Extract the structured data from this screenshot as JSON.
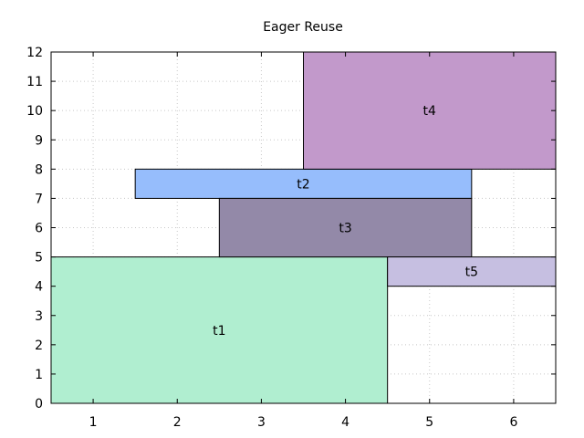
{
  "chart_data": {
    "type": "bar",
    "subtype": "interval-blocks",
    "title": "Eager Reuse",
    "xlabel": "",
    "ylabel": "",
    "xlim": [
      0.5,
      6.5
    ],
    "ylim": [
      0,
      12
    ],
    "x_ticks": [
      1,
      2,
      3,
      4,
      5,
      6
    ],
    "y_ticks": [
      0,
      1,
      2,
      3,
      4,
      5,
      6,
      7,
      8,
      9,
      10,
      11,
      12
    ],
    "grid": true,
    "blocks": [
      {
        "label": "t1",
        "x_start": 0.5,
        "x_end": 4.5,
        "y_start": 0,
        "y_end": 5,
        "color": "#b0eed0"
      },
      {
        "label": "t2",
        "x_start": 1.5,
        "x_end": 5.5,
        "y_start": 7,
        "y_end": 8,
        "color": "#96bdfc"
      },
      {
        "label": "t3",
        "x_start": 2.5,
        "x_end": 5.5,
        "y_start": 5,
        "y_end": 7,
        "color": "#9389a8"
      },
      {
        "label": "t4",
        "x_start": 3.5,
        "x_end": 6.5,
        "y_start": 8,
        "y_end": 12,
        "color": "#c299cb"
      },
      {
        "label": "t5",
        "x_start": 4.5,
        "x_end": 6.5,
        "y_start": 4,
        "y_end": 5,
        "color": "#c6bfe1"
      }
    ]
  }
}
